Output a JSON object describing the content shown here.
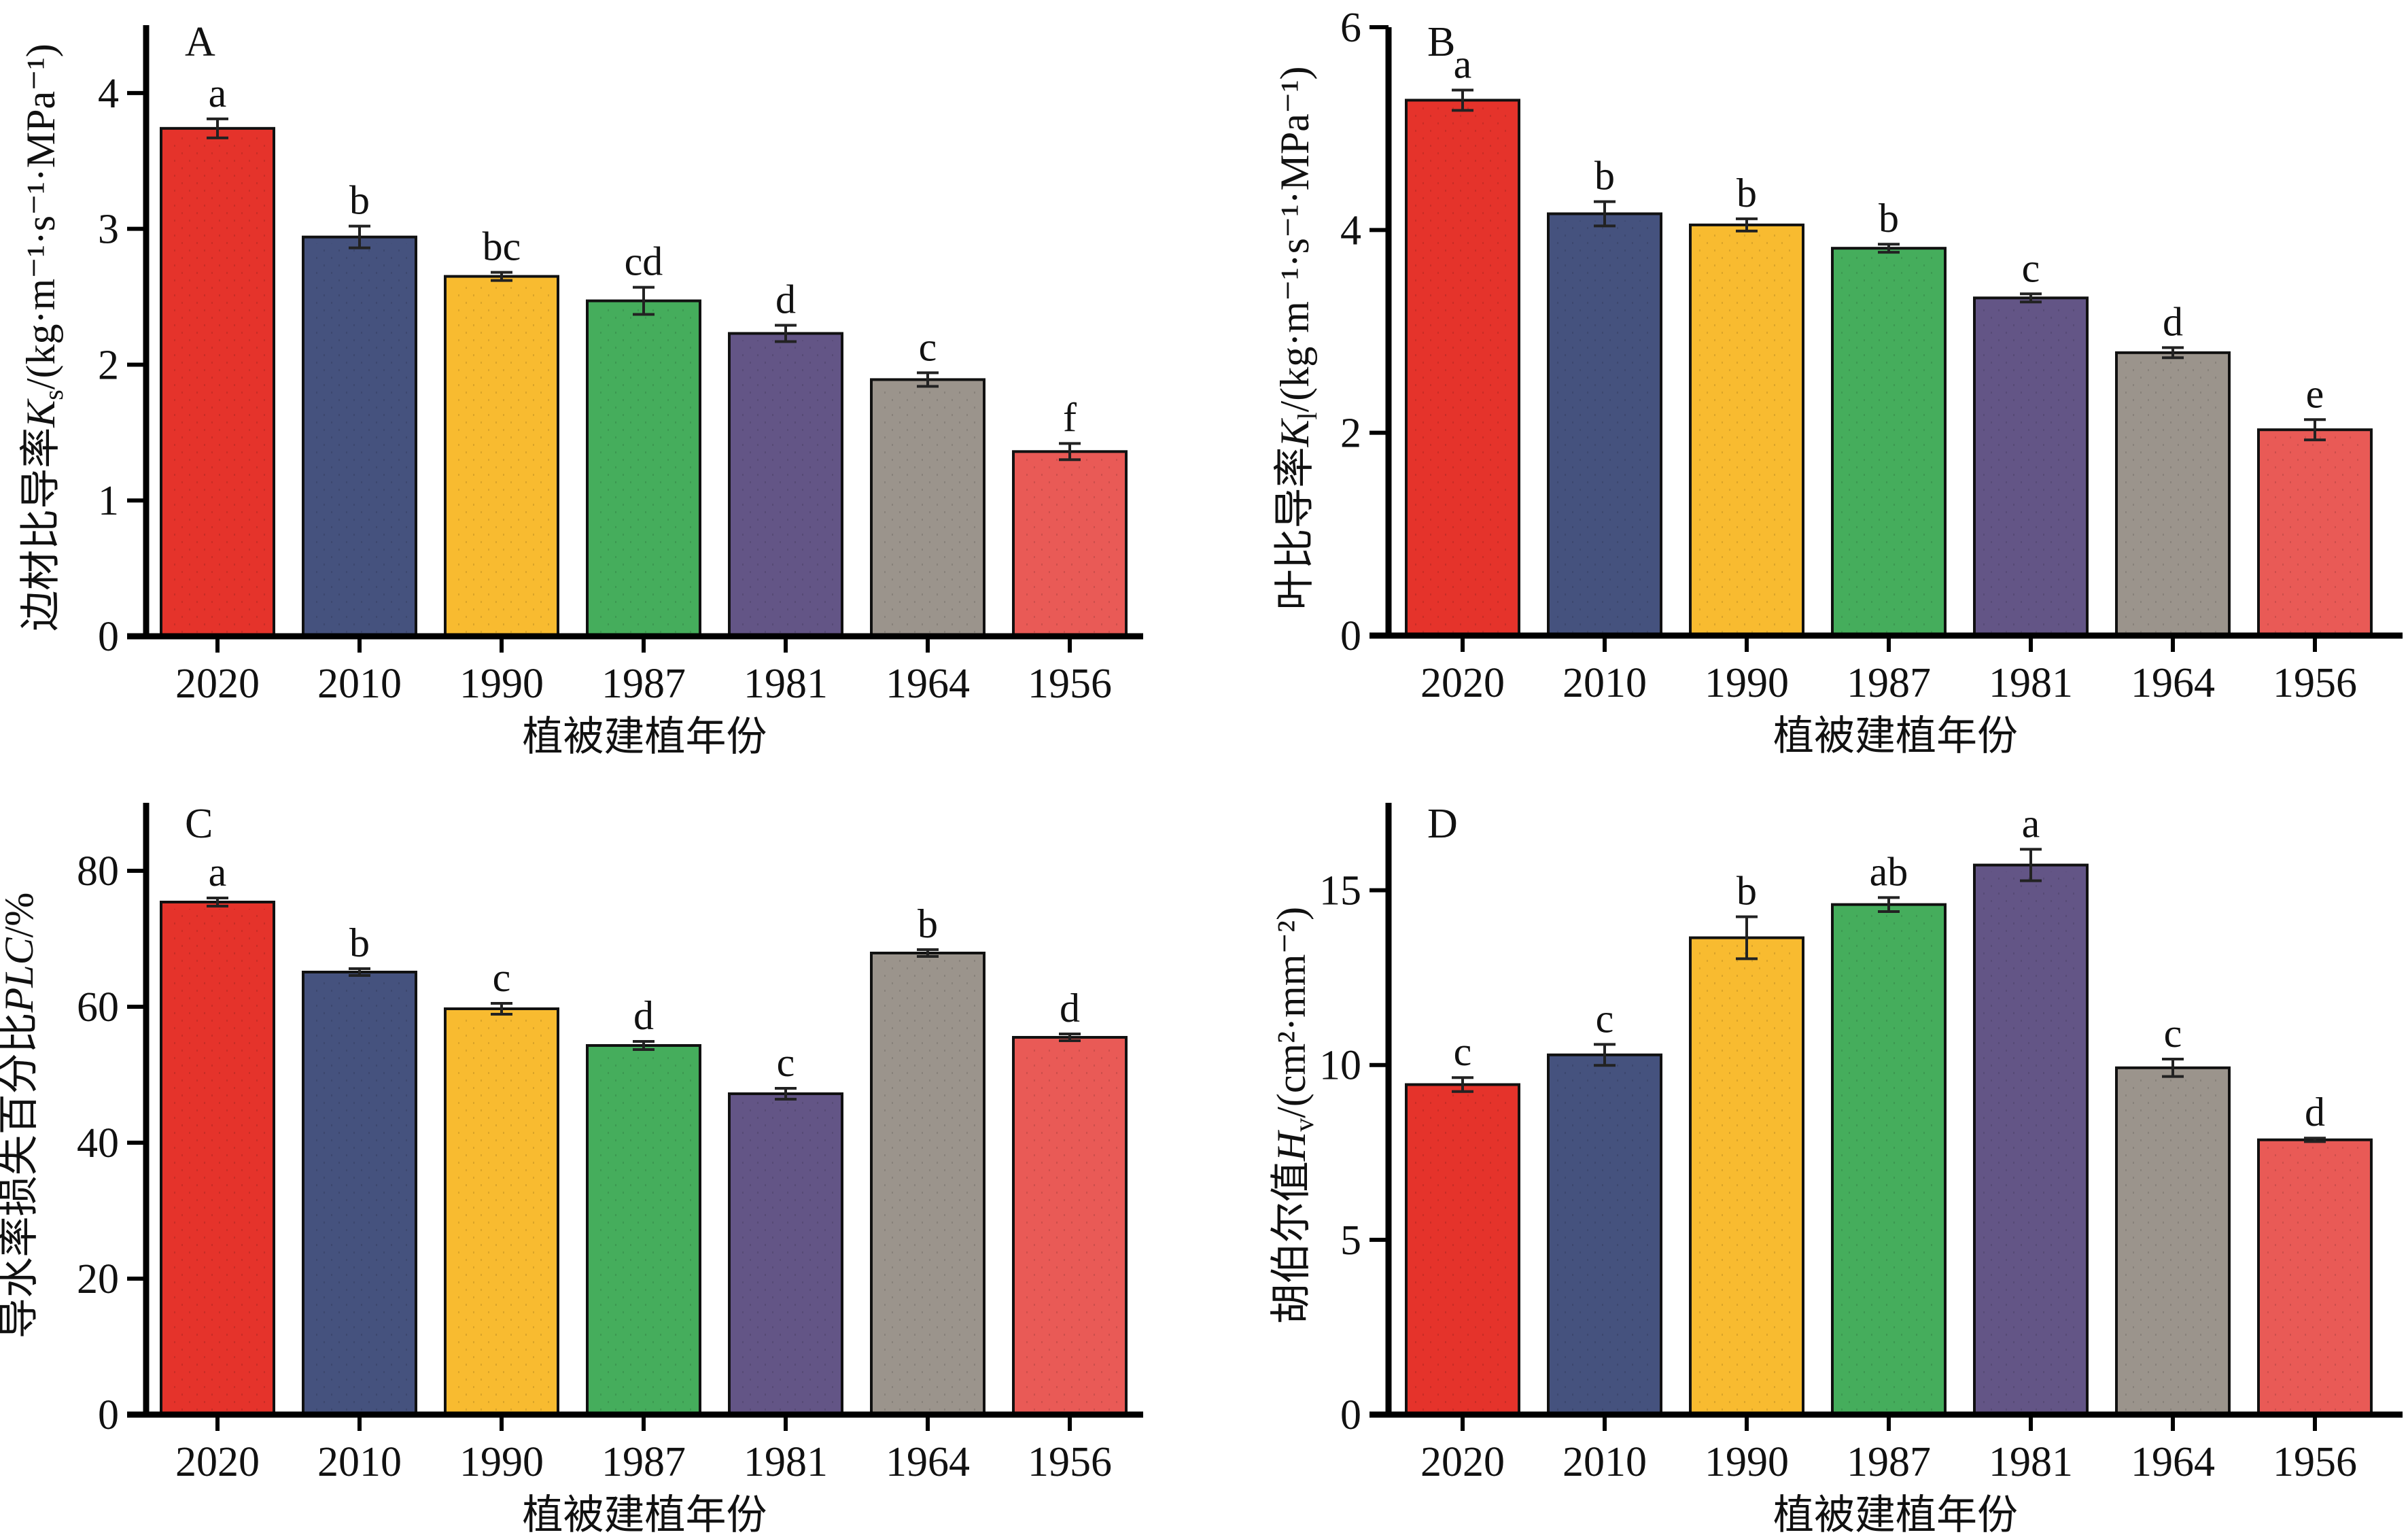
{
  "chart_data": [
    {
      "panel": "A",
      "type": "bar",
      "xlabel": "植被建植年份",
      "ylabel": {
        "prefix": "边材比导率",
        "symbol": "K",
        "subscript": "s",
        "units": "/(kg·m⁻¹·s⁻¹·MPa⁻¹)"
      },
      "ylim": [
        0,
        4.5
      ],
      "yticks": [
        0,
        1,
        2,
        3,
        4
      ],
      "categories": [
        "2020",
        "2010",
        "1990",
        "1987",
        "1981",
        "1964",
        "1956"
      ],
      "values": [
        3.74,
        2.94,
        2.65,
        2.47,
        2.23,
        1.89,
        1.36
      ],
      "errors": [
        0.07,
        0.08,
        0.03,
        0.1,
        0.06,
        0.05,
        0.06
      ],
      "significance": [
        "a",
        "b",
        "bc",
        "cd",
        "d",
        "c",
        "f"
      ]
    },
    {
      "panel": "B",
      "type": "bar",
      "xlabel": "植被建植年份",
      "ylabel": {
        "prefix": "叶比导率",
        "symbol": "K",
        "subscript": "l",
        "units": "/(kg·m⁻¹·s⁻¹·MPa⁻¹)"
      },
      "ylim": [
        0,
        6
      ],
      "yticks": [
        0,
        2,
        4,
        6
      ],
      "categories": [
        "2020",
        "2010",
        "1990",
        "1987",
        "1981",
        "1964",
        "1956"
      ],
      "values": [
        5.28,
        4.16,
        4.05,
        3.82,
        3.33,
        2.79,
        2.03
      ],
      "errors": [
        0.1,
        0.12,
        0.06,
        0.04,
        0.04,
        0.05,
        0.1
      ],
      "significance": [
        "a",
        "b",
        "b",
        "b",
        "c",
        "d",
        "e"
      ]
    },
    {
      "panel": "C",
      "type": "bar",
      "xlabel": "植被建植年份",
      "ylabel": {
        "prefix": "导水率损失百分比",
        "symbol": "PLC",
        "subscript": "",
        "units": "/%"
      },
      "ylim": [
        0,
        90
      ],
      "yticks": [
        0,
        20,
        40,
        60,
        80
      ],
      "categories": [
        "2020",
        "2010",
        "1990",
        "1987",
        "1981",
        "1964",
        "1956"
      ],
      "values": [
        75.4,
        65.1,
        59.7,
        54.3,
        47.2,
        67.9,
        55.5
      ],
      "errors": [
        0.6,
        0.5,
        0.8,
        0.6,
        0.8,
        0.5,
        0.5
      ],
      "significance": [
        "a",
        "b",
        "c",
        "d",
        "c",
        "b",
        "d"
      ]
    },
    {
      "panel": "D",
      "type": "bar",
      "xlabel": "植被建植年份",
      "ylabel": {
        "prefix": "胡伯尔值",
        "symbol": "H",
        "subscript": "v",
        "units": "/(cm²·mm⁻²)"
      },
      "ylim": [
        0,
        17.5
      ],
      "yticks": [
        0,
        5,
        10,
        15
      ],
      "categories": [
        "2020",
        "2010",
        "1990",
        "1987",
        "1981",
        "1964",
        "1956"
      ],
      "values": [
        9.44,
        10.29,
        13.64,
        14.59,
        15.72,
        9.92,
        7.86
      ],
      "errors": [
        0.2,
        0.3,
        0.6,
        0.2,
        0.45,
        0.25,
        0.05
      ],
      "significance": [
        "c",
        "c",
        "b",
        "ab",
        "a",
        "c",
        "d"
      ]
    }
  ],
  "bar_colors": [
    "#E5332B",
    "#45527E",
    "#F8BB30",
    "#45AD5C",
    "#635586",
    "#9B948C",
    "#E95A56"
  ]
}
